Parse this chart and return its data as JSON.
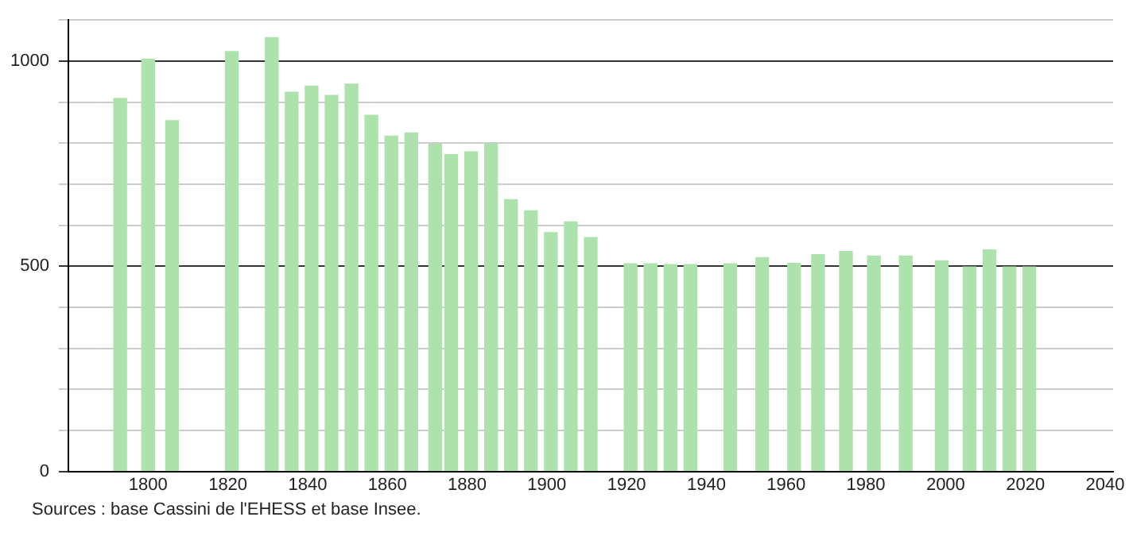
{
  "chart_data": {
    "type": "bar",
    "x": [
      1793,
      1800,
      1806,
      1821,
      1831,
      1836,
      1841,
      1846,
      1851,
      1856,
      1861,
      1866,
      1872,
      1876,
      1881,
      1886,
      1891,
      1896,
      1901,
      1906,
      1911,
      1921,
      1926,
      1931,
      1936,
      1946,
      1954,
      1962,
      1968,
      1975,
      1982,
      1990,
      1999,
      2006,
      2011,
      2016,
      2021
    ],
    "values": [
      909,
      1005,
      855,
      1023,
      1057,
      924,
      939,
      916,
      944,
      868,
      817,
      825,
      797,
      772,
      779,
      798,
      662,
      635,
      582,
      608,
      570,
      506,
      506,
      504,
      504,
      506,
      521,
      507,
      528,
      536,
      525,
      525,
      513,
      498,
      540,
      498,
      498
    ],
    "color": "#ade2ad",
    "xlim": [
      1780,
      2042
    ],
    "xticks": [
      1800,
      1820,
      1840,
      1860,
      1880,
      1900,
      1920,
      1940,
      1960,
      1980,
      2000,
      2020,
      2040
    ],
    "ylim": [
      0,
      1100
    ],
    "yticks": [
      0,
      {
        "value": 100,
        "label": null
      },
      {
        "value": 200,
        "label": null
      },
      {
        "value": 300,
        "label": null
      },
      {
        "value": 400,
        "label": null
      },
      500,
      {
        "value": 600,
        "label": null
      },
      {
        "value": 700,
        "label": null
      },
      {
        "value": 800,
        "label": null
      },
      {
        "value": 900,
        "label": null
      },
      1000,
      {
        "value": 1100,
        "label": null
      }
    ],
    "grid": "y",
    "legend": false,
    "annotations": [
      "Sources : base Cassini de l'EHESS et base Insee."
    ]
  }
}
